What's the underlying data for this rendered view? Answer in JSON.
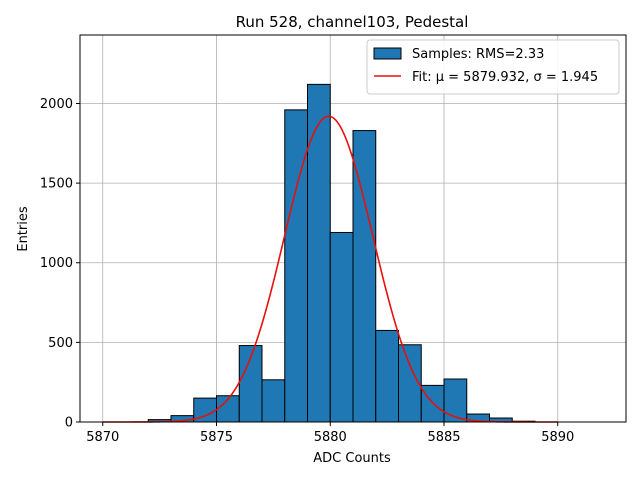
{
  "chart_data": {
    "type": "bar",
    "title": "Run 528, channel103, Pedestal",
    "xlabel": "ADC Counts",
    "ylabel": "Entries",
    "xlim": [
      5869,
      5893
    ],
    "ylim": [
      0,
      2430
    ],
    "x_ticks": [
      5870,
      5875,
      5880,
      5885,
      5890
    ],
    "y_ticks": [
      0,
      500,
      1000,
      1500,
      2000
    ],
    "grid": true,
    "legend_position": "top-right",
    "bin_width": 1,
    "bins": [
      {
        "left": 5871,
        "value": 0
      },
      {
        "left": 5872,
        "value": 15
      },
      {
        "left": 5873,
        "value": 40
      },
      {
        "left": 5874,
        "value": 150
      },
      {
        "left": 5875,
        "value": 165
      },
      {
        "left": 5876,
        "value": 480
      },
      {
        "left": 5877,
        "value": 265
      },
      {
        "left": 5878,
        "value": 1960
      },
      {
        "left": 5879,
        "value": 2120
      },
      {
        "left": 5880,
        "value": 1190
      },
      {
        "left": 5881,
        "value": 1830
      },
      {
        "left": 5882,
        "value": 575
      },
      {
        "left": 5883,
        "value": 485
      },
      {
        "left": 5884,
        "value": 230
      },
      {
        "left": 5885,
        "value": 270
      },
      {
        "left": 5886,
        "value": 50
      },
      {
        "left": 5887,
        "value": 25
      },
      {
        "left": 5888,
        "value": 5
      }
    ],
    "fit": {
      "mu": 5879.932,
      "sigma": 1.945,
      "amplitude": 1920,
      "x_range": [
        5870,
        5890
      ]
    },
    "series": [
      {
        "name": "Samples: RMS=2.33",
        "kind": "histogram",
        "color": "#1f77b4"
      },
      {
        "name": "Fit: μ = 5879.932, σ = 1.945",
        "kind": "line",
        "color": "#e8100c"
      }
    ]
  }
}
